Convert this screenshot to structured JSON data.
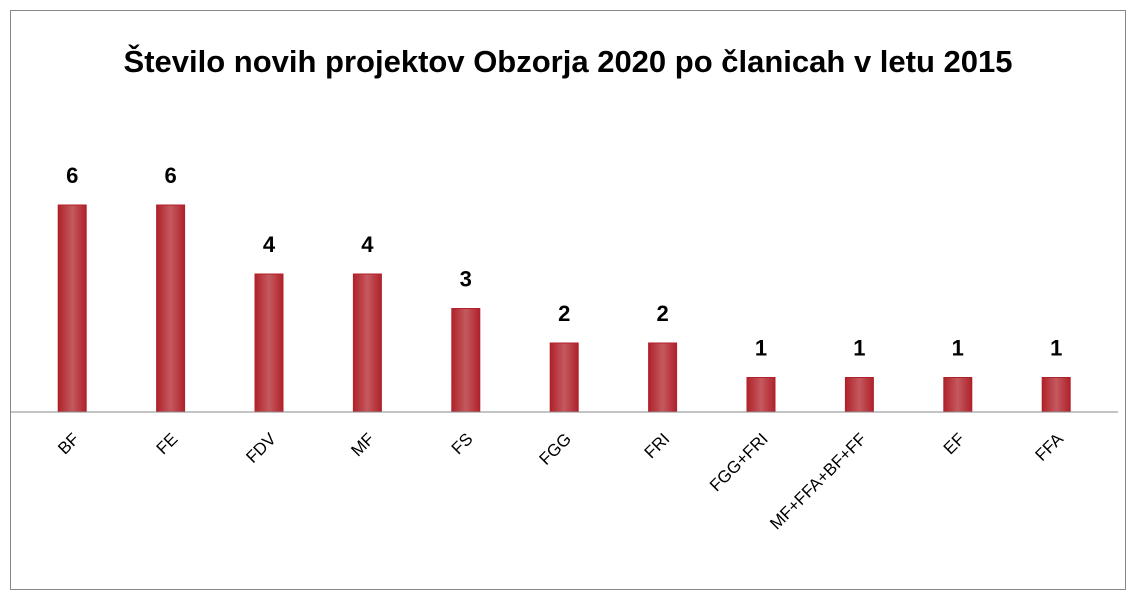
{
  "chart_data": {
    "type": "bar",
    "title": "Število novih projektov Obzorja 2020 po članicah v letu 2015",
    "categories": [
      "BF",
      "FE",
      "FDV",
      "MF",
      "FS",
      "FGG",
      "FRI",
      "FGG+FRI",
      "MF+FFA+BF+FF",
      "EF",
      "FFA"
    ],
    "values": [
      6,
      6,
      4,
      4,
      3,
      2,
      2,
      1,
      1,
      1,
      1
    ],
    "color": "#b0222a"
  }
}
